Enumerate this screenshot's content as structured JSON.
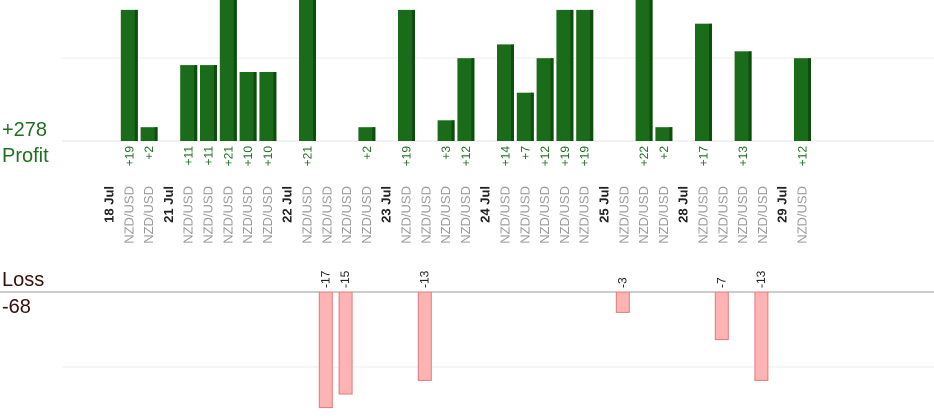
{
  "summary": {
    "profit_total": "+278",
    "profit_label": "Profit",
    "loss_label": "Loss",
    "loss_total": "-68"
  },
  "colors": {
    "profit_bar": "#1a6b1a",
    "profit_bar_dark": "#0d4d0d",
    "loss_bar": "#ffb3b3",
    "loss_bar_stroke": "#e07a7a",
    "profit_text": "#1f6f1f",
    "loss_text": "#3a0d0d",
    "pair_text": "#9a9a9a"
  },
  "chart_data": {
    "type": "bar",
    "profit_ylim": [
      0,
      20
    ],
    "loss_ylim": [
      -17,
      0
    ],
    "categories": [
      {
        "date": "18 Jul",
        "trades": [
          {
            "pair": "NZD/USD",
            "value": 19,
            "label": "+19"
          },
          {
            "pair": "NZD/USD",
            "value": 2,
            "label": "+2"
          }
        ]
      },
      {
        "date": "21 Jul",
        "trades": [
          {
            "pair": "NZD/USD",
            "value": 11,
            "label": "+11"
          },
          {
            "pair": "NZD/USD",
            "value": 11,
            "label": "+11"
          },
          {
            "pair": "NZD/USD",
            "value": 21,
            "label": "+21"
          },
          {
            "pair": "NZD/USD",
            "value": 10,
            "label": "+10"
          },
          {
            "pair": "NZD/USD",
            "value": 10,
            "label": "+10"
          }
        ]
      },
      {
        "date": "22 Jul",
        "trades": [
          {
            "pair": "NZD/USD",
            "value": 21,
            "label": "+21"
          },
          {
            "pair": "NZD/USD",
            "value": -17,
            "label": "-17"
          },
          {
            "pair": "NZD/USD",
            "value": -15,
            "label": "-15"
          },
          {
            "pair": "NZD/USD",
            "value": 2,
            "label": "+2"
          }
        ]
      },
      {
        "date": "23 Jul",
        "trades": [
          {
            "pair": "NZD/USD",
            "value": 19,
            "label": "+19"
          },
          {
            "pair": "NZD/USD",
            "value": -13,
            "label": "-13"
          },
          {
            "pair": "NZD/USD",
            "value": 3,
            "label": "+3"
          },
          {
            "pair": "NZD/USD",
            "value": 12,
            "label": "+12"
          }
        ]
      },
      {
        "date": "24 Jul",
        "trades": [
          {
            "pair": "NZD/USD",
            "value": 14,
            "label": "+14"
          },
          {
            "pair": "NZD/USD",
            "value": 7,
            "label": "+7"
          },
          {
            "pair": "NZD/USD",
            "value": 12,
            "label": "+12"
          },
          {
            "pair": "NZD/USD",
            "value": 19,
            "label": "+19"
          },
          {
            "pair": "NZD/USD",
            "value": 19,
            "label": "+19"
          }
        ]
      },
      {
        "date": "25 Jul",
        "trades": [
          {
            "pair": "NZD/USD",
            "value": -3,
            "label": "-3"
          },
          {
            "pair": "NZD/USD",
            "value": 22,
            "label": "+22"
          },
          {
            "pair": "NZD/USD",
            "value": 2,
            "label": "+2"
          }
        ]
      },
      {
        "date": "28 Jul",
        "trades": [
          {
            "pair": "NZD/USD",
            "value": 17,
            "label": "+17"
          },
          {
            "pair": "NZD/USD",
            "value": -7,
            "label": "-7"
          },
          {
            "pair": "NZD/USD",
            "value": 13,
            "label": "+13"
          },
          {
            "pair": "NZD/USD",
            "value": -13,
            "label": "-13"
          }
        ]
      },
      {
        "date": "29 Jul",
        "trades": [
          {
            "pair": "NZD/USD",
            "value": 12,
            "label": "+12"
          }
        ]
      }
    ]
  }
}
